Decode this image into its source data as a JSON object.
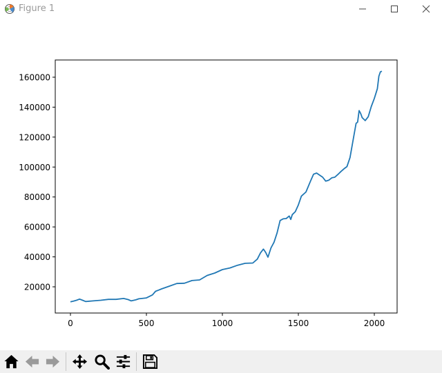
{
  "window": {
    "title": "Figure 1",
    "icons": {
      "app": "matplotlib-logo-icon",
      "minimize": "minimize-icon",
      "maximize": "maximize-icon",
      "close": "close-icon"
    }
  },
  "toolbar": {
    "buttons": [
      {
        "name": "home-button",
        "icon": "home-icon"
      },
      {
        "name": "back-button",
        "icon": "arrow-left-icon"
      },
      {
        "name": "forward-button",
        "icon": "arrow-right-icon"
      },
      {
        "name": "pan-button",
        "icon": "move-icon"
      },
      {
        "name": "zoom-button",
        "icon": "magnifier-icon"
      },
      {
        "name": "configure-subplots-button",
        "icon": "sliders-icon"
      },
      {
        "name": "save-button",
        "icon": "floppy-disk-icon"
      }
    ]
  },
  "chart_data": {
    "type": "line",
    "title": "",
    "xlabel": "",
    "ylabel": "",
    "xlim": [
      -100,
      2150
    ],
    "ylim": [
      2500,
      171500
    ],
    "x_ticks": [
      0,
      500,
      1000,
      1500,
      2000
    ],
    "x_tick_labels": [
      "0",
      "500",
      "1000",
      "1500",
      "2000"
    ],
    "y_ticks": [
      20000,
      40000,
      60000,
      80000,
      100000,
      120000,
      140000,
      160000
    ],
    "y_tick_labels": [
      "20000",
      "40000",
      "60000",
      "80000",
      "100000",
      "120000",
      "140000",
      "160000"
    ],
    "grid": false,
    "legend": "none",
    "series": [
      {
        "color": "#1f77b4",
        "x": [
          0,
          20,
          40,
          60,
          80,
          100,
          150,
          200,
          250,
          300,
          350,
          380,
          400,
          430,
          450,
          500,
          540,
          560,
          580,
          600,
          650,
          700,
          750,
          800,
          850,
          900,
          950,
          1000,
          1050,
          1100,
          1150,
          1200,
          1230,
          1250,
          1270,
          1285,
          1300,
          1320,
          1340,
          1360,
          1380,
          1400,
          1420,
          1440,
          1450,
          1460,
          1480,
          1500,
          1520,
          1550,
          1580,
          1600,
          1620,
          1640,
          1660,
          1680,
          1700,
          1720,
          1740,
          1760,
          1780,
          1800,
          1820,
          1840,
          1860,
          1880,
          1890,
          1900,
          1910,
          1920,
          1940,
          1960,
          1980,
          2000,
          2020,
          2030,
          2040,
          2050
        ],
        "values": [
          10000,
          10400,
          11000,
          11800,
          11000,
          10200,
          10600,
          11000,
          11600,
          11600,
          12200,
          11500,
          10600,
          11300,
          12000,
          12600,
          14600,
          17000,
          17800,
          18600,
          20400,
          22200,
          22400,
          24200,
          24600,
          27600,
          29200,
          31500,
          32600,
          34400,
          35700,
          35900,
          38500,
          42500,
          45200,
          43000,
          39800,
          46000,
          49800,
          56000,
          64300,
          65400,
          65600,
          67300,
          65000,
          68200,
          70200,
          74700,
          80600,
          83300,
          90600,
          95200,
          96000,
          94600,
          93200,
          90600,
          91200,
          92800,
          93200,
          95000,
          97000,
          98800,
          100300,
          106300,
          117800,
          129200,
          130000,
          137700,
          135800,
          133000,
          131000,
          133600,
          140400,
          145800,
          152300,
          160700,
          163600,
          164000
        ]
      }
    ]
  }
}
